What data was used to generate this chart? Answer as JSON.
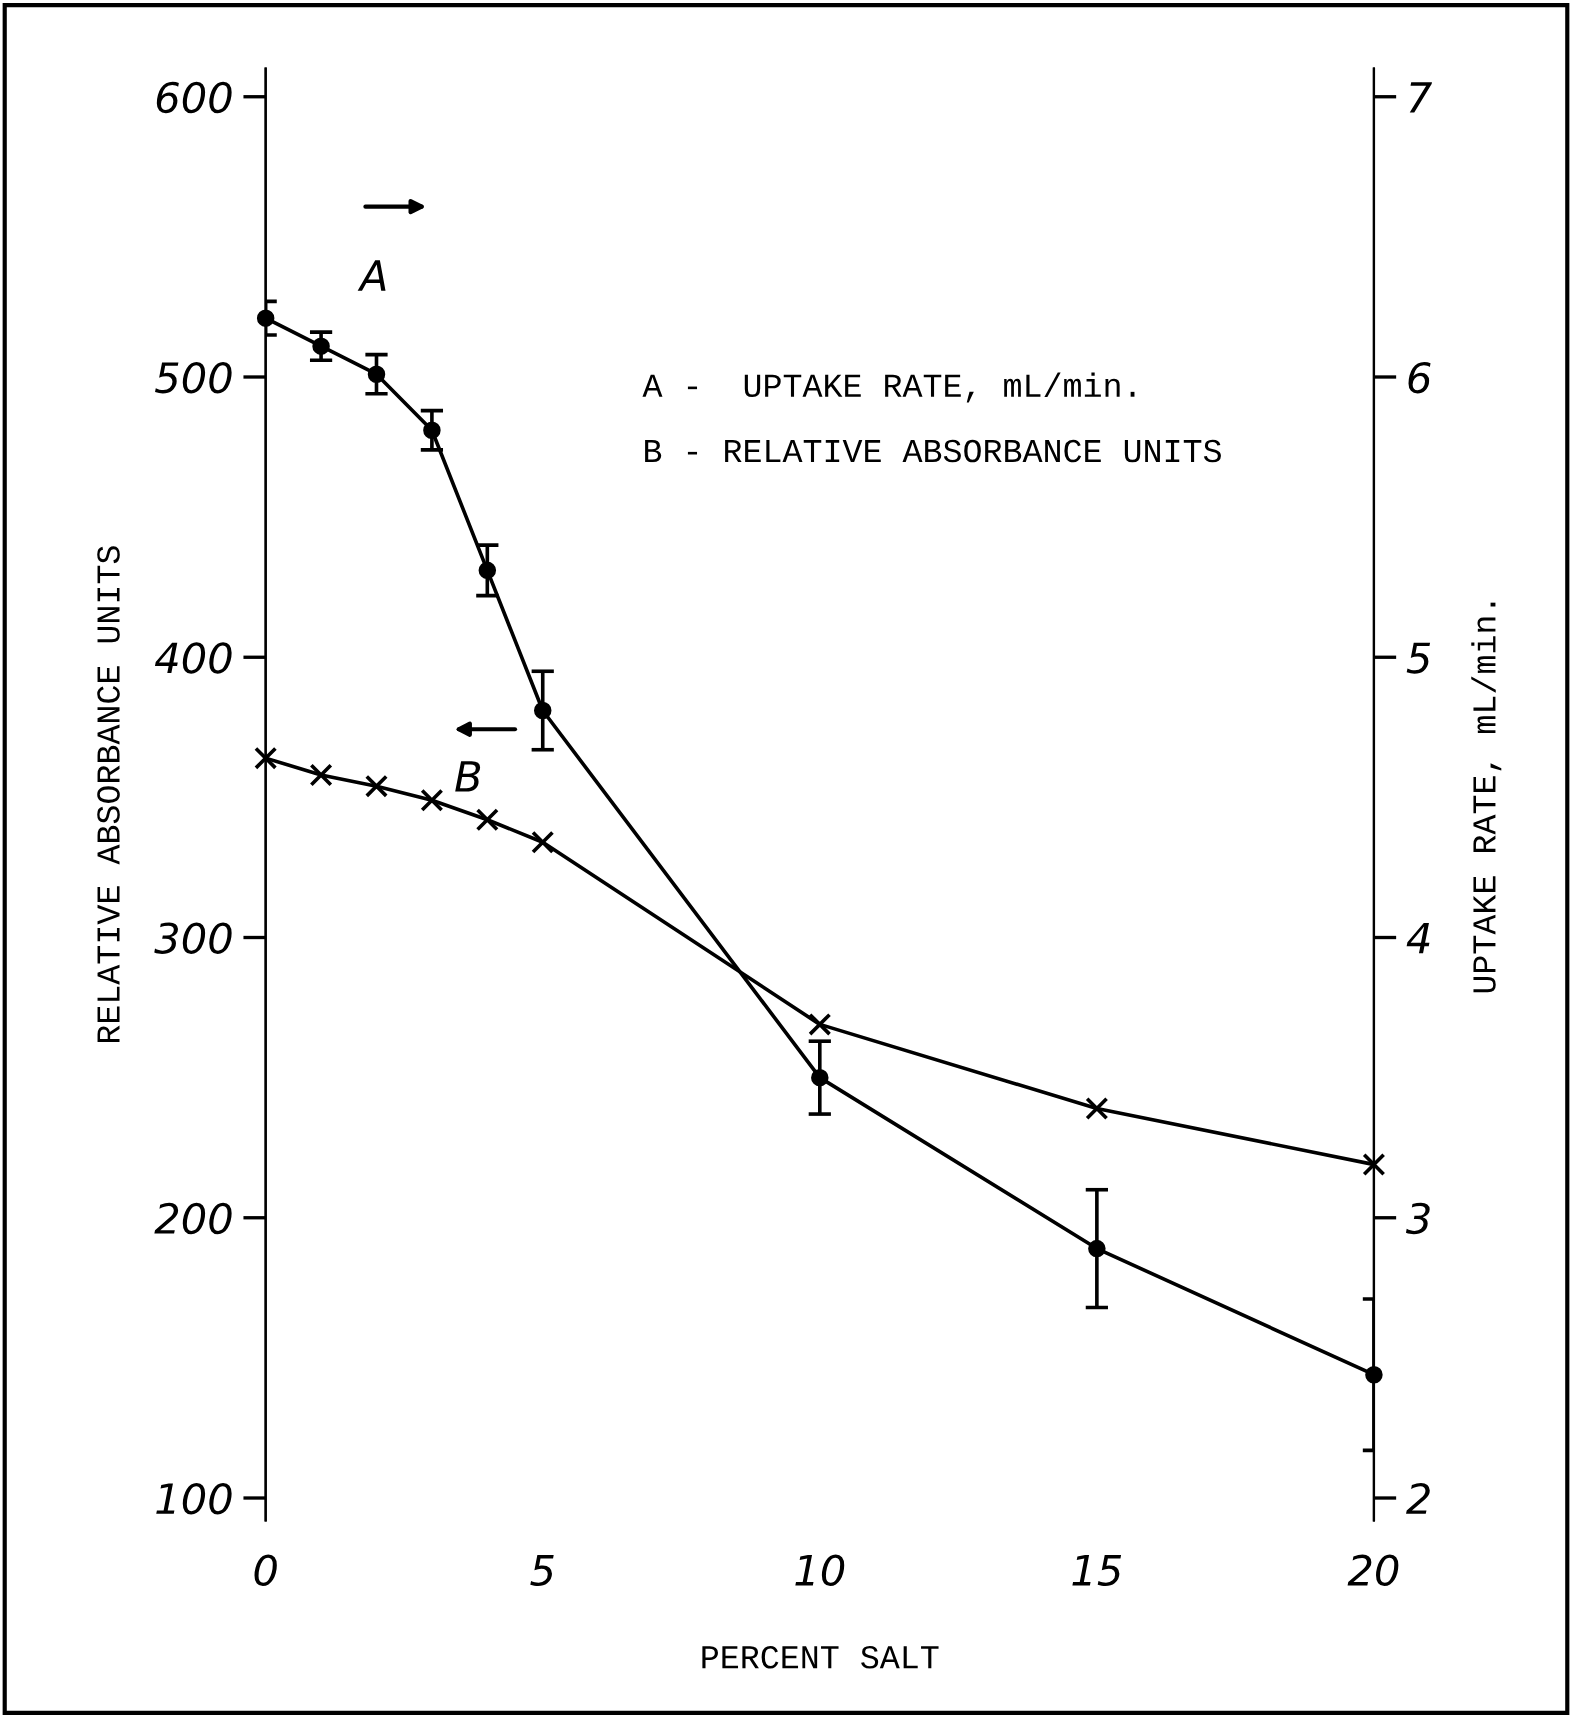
{
  "chart_data": {
    "type": "line",
    "xlabel": "PERCENT SALT",
    "ylabel": "RELATIVE ABSORBANCE UNITS",
    "y2label": "UPTAKE RATE, mL/min.",
    "x": [
      0,
      1,
      2,
      3,
      4,
      5,
      10,
      15,
      20
    ],
    "series": [
      {
        "color": "#000000",
        "axis": "y2",
        "marker": "circle",
        "values": [
          6.21,
          6.11,
          6.01,
          5.81,
          5.31,
          4.81,
          3.5,
          2.89,
          2.44
        ],
        "errors": [
          0.06,
          0.05,
          0.07,
          0.07,
          0.09,
          0.14,
          0.13,
          0.21,
          0.27
        ]
      },
      {
        "color": "#000000",
        "axis": "y",
        "marker": "cross",
        "values": [
          364,
          358,
          354,
          349,
          342,
          334,
          269,
          239,
          219
        ]
      }
    ],
    "xlim": [
      0,
      20
    ],
    "xticks": [
      0,
      5,
      10,
      15,
      20
    ],
    "ylim": [
      92,
      610
    ],
    "yticks": [
      100,
      200,
      300,
      400,
      500,
      600
    ],
    "y2lim": [
      1.92,
      7.1
    ],
    "y2ticks": [
      2,
      3,
      4,
      5,
      6,
      7
    ],
    "annotations": [
      "A",
      "B",
      "A -  UPTAKE RATE, mL/min.",
      "B - RELATIVE ABSORBANCE UNITS"
    ],
    "grid": false,
    "line_style": "solid"
  }
}
